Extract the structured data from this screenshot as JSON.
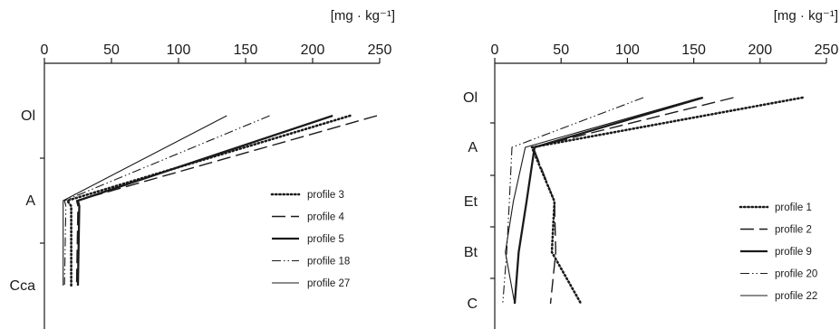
{
  "chart_data": [
    {
      "type": "line",
      "orientation": "depth-profile (x = value, y = soil horizon)",
      "unit_label": "[mg · kg⁻¹]",
      "xlim": [
        0,
        250
      ],
      "x_ticks": [
        0,
        50,
        100,
        150,
        200,
        250
      ],
      "horizons": [
        "Ol",
        "A",
        "Cca"
      ],
      "legend_position": "middle-right",
      "series": [
        {
          "name": "profile 3",
          "style": "dotted",
          "points": [
            {
              "horizon": "Ol",
              "x": 228
            },
            {
              "horizon": "A",
              "x": 17
            },
            {
              "horizon": "A",
              "x": 20
            },
            {
              "horizon": "Cca",
              "x": 20
            }
          ]
        },
        {
          "name": "profile 4",
          "style": "long-dash",
          "points": [
            {
              "horizon": "Ol",
              "x": 248
            },
            {
              "horizon": "A",
              "x": 24
            },
            {
              "horizon": "A",
              "x": 25
            },
            {
              "horizon": "Cca",
              "x": 24
            }
          ]
        },
        {
          "name": "profile 5",
          "style": "thick-solid",
          "points": [
            {
              "horizon": "Ol",
              "x": 215
            },
            {
              "horizon": "A",
              "x": 25
            },
            {
              "horizon": "A",
              "x": 26
            },
            {
              "horizon": "Cca",
              "x": 25
            }
          ]
        },
        {
          "name": "profile 18",
          "style": "dash-dot-dot",
          "points": [
            {
              "horizon": "Ol",
              "x": 168
            },
            {
              "horizon": "A",
              "x": 15
            },
            {
              "horizon": "A",
              "x": 16
            },
            {
              "horizon": "Cca",
              "x": 15
            }
          ]
        },
        {
          "name": "profile 27",
          "style": "thin-solid",
          "points": [
            {
              "horizon": "Ol",
              "x": 136
            },
            {
              "horizon": "A",
              "x": 14
            },
            {
              "horizon": "A",
              "x": 14
            },
            {
              "horizon": "Cca",
              "x": 14
            }
          ]
        }
      ]
    },
    {
      "type": "line",
      "orientation": "depth-profile (x = value, y = soil horizon)",
      "unit_label": "[mg · kg⁻¹]",
      "xlim": [
        0,
        250
      ],
      "x_ticks": [
        0,
        50,
        100,
        150,
        200,
        250
      ],
      "horizons": [
        "Ol",
        "A",
        "Et",
        "Bt",
        "C"
      ],
      "legend_position": "bottom-right",
      "series": [
        {
          "name": "profile 1",
          "style": "dotted",
          "points": [
            {
              "horizon": "Ol",
              "x": 232
            },
            {
              "horizon": "A",
              "x": 28
            },
            {
              "horizon": "Et",
              "x": 45
            },
            {
              "horizon": "Bt",
              "x": 43
            },
            {
              "horizon": "C",
              "x": 65
            }
          ]
        },
        {
          "name": "profile 2",
          "style": "long-dash",
          "points": [
            {
              "horizon": "Ol",
              "x": 180
            },
            {
              "horizon": "A",
              "x": 29
            },
            {
              "horizon": "Et",
              "x": 45
            },
            {
              "horizon": "Bt",
              "x": 46
            },
            {
              "horizon": "C",
              "x": 42
            }
          ]
        },
        {
          "name": "profile 9",
          "style": "thick-solid",
          "points": [
            {
              "horizon": "Ol",
              "x": 157
            },
            {
              "horizon": "A",
              "x": 30
            },
            {
              "horizon": "Et",
              "x": 24
            },
            {
              "horizon": "Bt",
              "x": 18
            },
            {
              "horizon": "C",
              "x": 15
            }
          ]
        },
        {
          "name": "profile 20",
          "style": "dash-dot-dot",
          "points": [
            {
              "horizon": "Ol",
              "x": 112
            },
            {
              "horizon": "A",
              "x": 13
            },
            {
              "horizon": "Et",
              "x": 11
            },
            {
              "horizon": "Bt",
              "x": 9
            },
            {
              "horizon": "C",
              "x": 6
            }
          ]
        },
        {
          "name": "profile 22",
          "style": "thin-solid",
          "points": [
            {
              "horizon": "Ol",
              "x": 155
            },
            {
              "horizon": "A",
              "x": 23
            },
            {
              "horizon": "Et",
              "x": 14
            },
            {
              "horizon": "Bt",
              "x": 8
            },
            {
              "horizon": "C",
              "x": 15
            }
          ]
        }
      ]
    }
  ]
}
